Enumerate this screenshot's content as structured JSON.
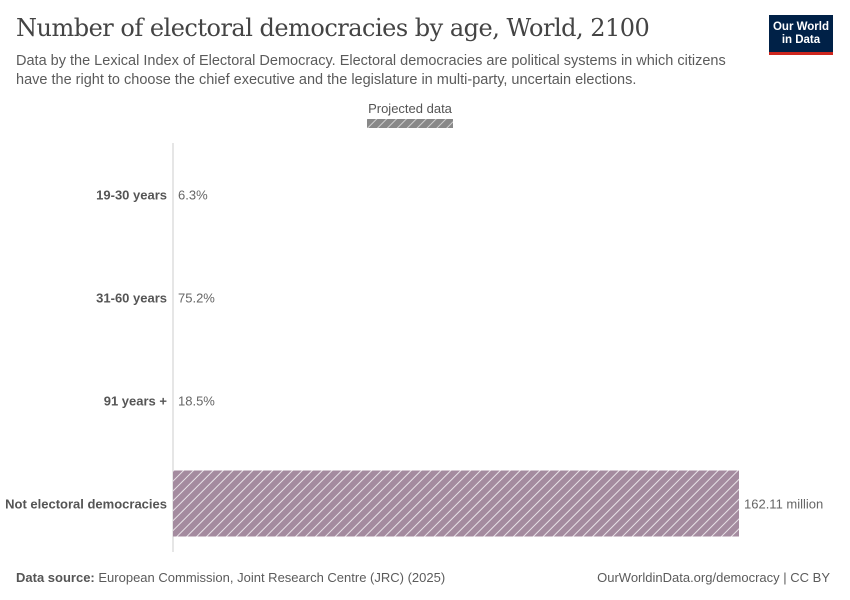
{
  "header": {
    "title": "Number of electoral democracies by age, World, 2100",
    "subtitle": "Data by the Lexical Index of Electoral Democracy. Electoral democracies are political systems in which citizens have the right to choose the chief executive and the legislature in multi-party, uncertain elections.",
    "logo": "Our World in Data"
  },
  "chart_data": {
    "type": "bar",
    "orientation": "horizontal",
    "title": "Number of electoral democracies by age, World, 2100",
    "legend": {
      "label": "Projected data",
      "placement": "top-center",
      "pattern": "hatched"
    },
    "categories": [
      "19-30 years",
      "31-60 years",
      "91 years +",
      "Not electoral democracies"
    ],
    "values": [
      null,
      null,
      null,
      162.11
    ],
    "data_labels": [
      "6.3%",
      "75.2%",
      "18.5%",
      "162.11 million"
    ],
    "unit": "million",
    "xlim": [
      0,
      162.11
    ],
    "grid": false,
    "colors": {
      "bar": "#a48b9f",
      "hatch": "#ffffff",
      "legend": "#888888"
    }
  },
  "footer": {
    "source_label": "Data source:",
    "source": "European Commission, Joint Research Centre (JRC) (2025)",
    "credit": "OurWorldinData.org/democracy | CC BY"
  }
}
